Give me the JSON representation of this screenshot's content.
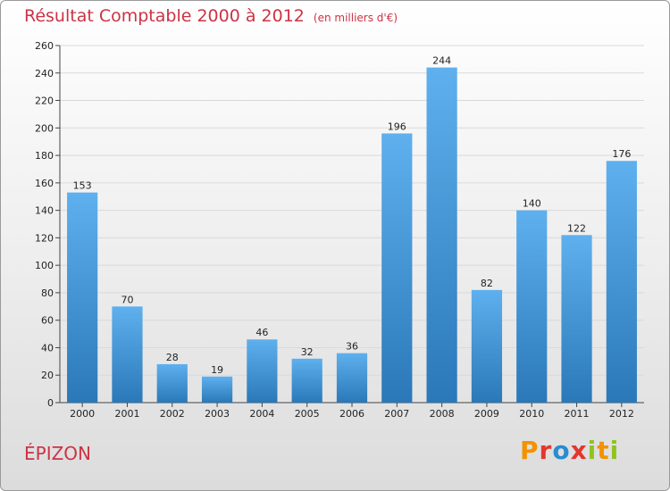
{
  "header": {
    "title": "Résultat Comptable 2000 à 2012",
    "subtitle": "(en milliers d'€)"
  },
  "footer": {
    "commune": "ÉPIZON",
    "logo_text": "Proxiti",
    "logo_colors": [
      "#f39200",
      "#e4362d",
      "#2a8ccf",
      "#e4362d",
      "#8fc31f",
      "#f39200",
      "#8fc31f"
    ]
  },
  "colors": {
    "title": "#cc3344",
    "bar_top": "#5fb0ee",
    "bar_bottom": "#2a78b8",
    "grid": "#d9d9d9"
  },
  "chart_data": {
    "type": "bar",
    "title": "Résultat Comptable 2000 à 2012",
    "subtitle": "(en milliers d'€)",
    "categories": [
      "2000",
      "2001",
      "2002",
      "2003",
      "2004",
      "2005",
      "2006",
      "2007",
      "2008",
      "2009",
      "2010",
      "2011",
      "2012"
    ],
    "values": [
      153,
      70,
      28,
      19,
      46,
      32,
      36,
      196,
      244,
      82,
      140,
      122,
      176
    ],
    "ylim": [
      0,
      260
    ],
    "yticks": [
      0,
      20,
      40,
      60,
      80,
      100,
      120,
      140,
      160,
      180,
      200,
      220,
      240,
      260
    ],
    "grid": true,
    "legend": "none"
  }
}
